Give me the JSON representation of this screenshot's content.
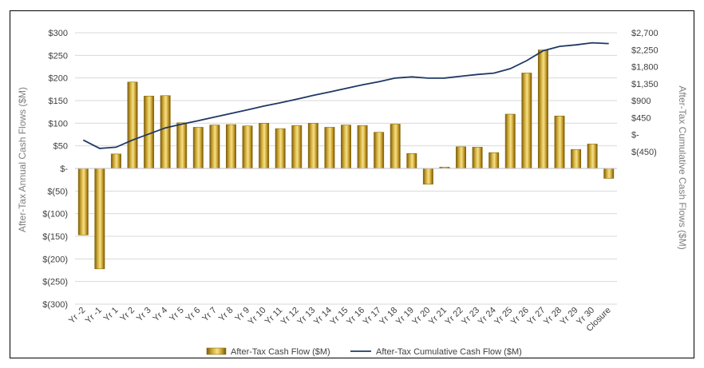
{
  "chart_data": {
    "type": "bar",
    "title": "",
    "categories": [
      "Yr -2",
      "Yr -1",
      "Yr 1",
      "Yr 2",
      "Yr 3",
      "Yr 4",
      "Yr 5",
      "Yr 6",
      "Yr 7",
      "Yr 8",
      "Yr 9",
      "Yr 10",
      "Yr 11",
      "Yr 12",
      "Yr 13",
      "Yr 14",
      "Yr 15",
      "Yr 16",
      "Yr 17",
      "Yr 18",
      "Yr 19",
      "Yr 20",
      "Yr 21",
      "Yr 22",
      "Yr 23",
      "Yr 24",
      "Yr 25",
      "Yr 26",
      "Yr 27",
      "Yr 28",
      "Yr 29",
      "Yr 30",
      "Closure"
    ],
    "series": [
      {
        "name": "After-Tax Cash Flow ($M)",
        "axis": "left",
        "kind": "bar",
        "color": "#c9a227",
        "values": [
          -147,
          -222,
          32,
          191,
          160,
          161,
          101,
          91,
          96,
          97,
          94,
          100,
          88,
          95,
          100,
          91,
          96,
          95,
          80,
          98,
          33,
          -35,
          3,
          48,
          47,
          35,
          120,
          211,
          262,
          116,
          42,
          54,
          -22
        ]
      },
      {
        "name": "After-Tax Cumulative Cash Flow ($M)",
        "axis": "right",
        "kind": "line",
        "color": "#1f3864",
        "values": [
          -147,
          -369,
          -337,
          -146,
          14,
          175,
          276,
          367,
          463,
          560,
          654,
          754,
          842,
          937,
          1037,
          1128,
          1224,
          1319,
          1399,
          1497,
          1530,
          1495,
          1498,
          1546,
          1593,
          1628,
          1748,
          1959,
          2221,
          2337,
          2379,
          2433,
          2411
        ]
      }
    ],
    "left_axis": {
      "label": "After-Tax Annual Cash Flows ($M)",
      "ylim": [
        -300,
        300
      ],
      "ticks": [
        300,
        250,
        200,
        150,
        100,
        50,
        0,
        -50,
        -100,
        -150,
        -200,
        -250,
        -300
      ],
      "tick_labels": [
        "$300",
        "$250",
        "$200",
        "$150",
        "$100",
        "$50",
        "$-",
        "$(50)",
        "$(100)",
        "$(150)",
        "$(200)",
        "$(250)",
        "$(300)"
      ]
    },
    "right_axis": {
      "label": "After-Tax Cumulative Cash Flows ($M)",
      "ylim": [
        -4500,
        2700
      ],
      "ticks": [
        2700,
        2250,
        1800,
        1350,
        900,
        450,
        0,
        -450
      ],
      "tick_labels": [
        "$2,700",
        "$2,250",
        "$1,800",
        "$1,350",
        "$900",
        "$450",
        "$-",
        "$(450)"
      ]
    },
    "grid": true,
    "legend": "bottom-center"
  }
}
